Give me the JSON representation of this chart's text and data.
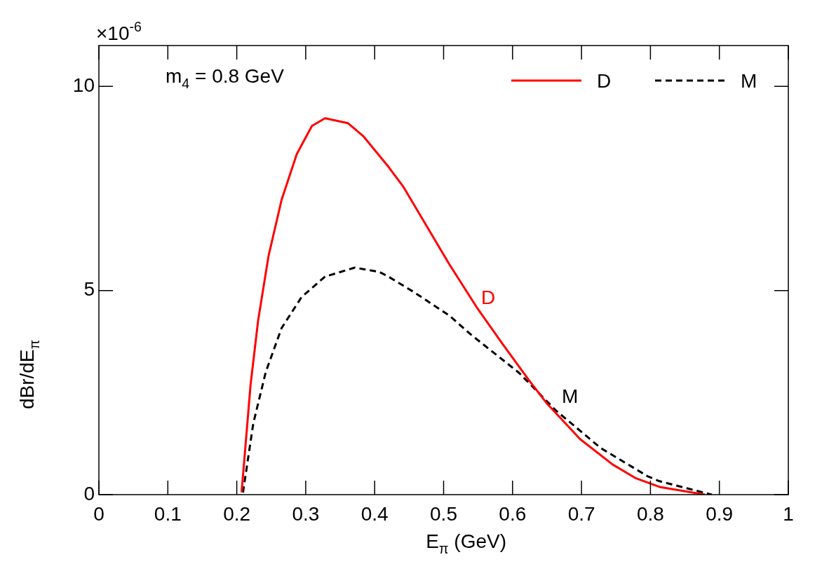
{
  "chart_data": {
    "type": "line",
    "xlabel": "E$_{π}$ (GeV)",
    "ylabel": "dBr/dE$_{π}$",
    "xlim": [
      0,
      1
    ],
    "xticks": [
      0,
      0.1,
      0.2,
      0.3,
      0.4,
      0.5,
      0.6,
      0.7,
      0.8,
      0.9,
      1
    ],
    "ylim": [
      0,
      11
    ],
    "yticks": [
      0,
      5,
      10
    ],
    "grid": false,
    "legend": "top right",
    "annotations": [
      "×10$^{-6}$",
      "m$_{4}$ = 0.8 GeV",
      "D",
      "M"
    ],
    "series": [
      {
        "name": "D",
        "color": "#ff0000",
        "line_style": "solid",
        "x": [
          0.207,
          0.22,
          0.231,
          0.246,
          0.265,
          0.287,
          0.309,
          0.328,
          0.361,
          0.383,
          0.42,
          0.442,
          0.475,
          0.508,
          0.548,
          0.586,
          0.623,
          0.65,
          0.698,
          0.745,
          0.779,
          0.813,
          0.879
        ],
        "values": [
          0.06,
          2.69,
          4.27,
          5.84,
          7.22,
          8.34,
          9.03,
          9.22,
          9.1,
          8.79,
          8.03,
          7.53,
          6.59,
          5.65,
          4.59,
          3.68,
          2.82,
          2.23,
          1.36,
          0.74,
          0.4,
          0.19,
          0
        ]
      },
      {
        "name": "M",
        "color": "#000000",
        "line_style": "dashed",
        "x": [
          0.209,
          0.224,
          0.242,
          0.265,
          0.294,
          0.328,
          0.371,
          0.406,
          0.42,
          0.457,
          0.474,
          0.508,
          0.541,
          0.609,
          0.663,
          0.728,
          0.796,
          0.813,
          0.889
        ],
        "values": [
          0.05,
          1.75,
          3.0,
          4.08,
          4.84,
          5.34,
          5.56,
          5.46,
          5.34,
          4.96,
          4.77,
          4.39,
          3.9,
          2.99,
          2.06,
          1.14,
          0.45,
          0.33,
          0
        ]
      }
    ]
  }
}
